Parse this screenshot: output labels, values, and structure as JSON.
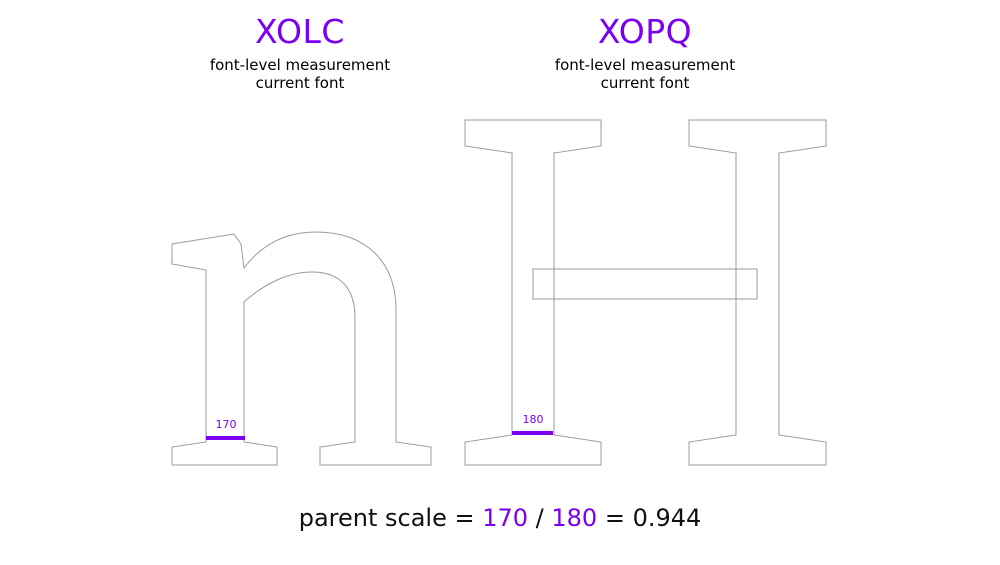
{
  "left": {
    "title": "XOLC",
    "subtitle_line1": "font-level measurement",
    "subtitle_line2": "current font",
    "glyph": "n",
    "measurement": "170"
  },
  "right": {
    "title": "XOPQ",
    "subtitle_line1": "font-level measurement",
    "subtitle_line2": "current font",
    "glyph": "H",
    "measurement": "180"
  },
  "formula": {
    "prefix": "parent scale = ",
    "numerator": "170",
    "divider": " / ",
    "denominator": "180",
    "equals": " = ",
    "result": "0.944"
  },
  "colors": {
    "accent": "#7B00F0",
    "outline": "#9a9a9a",
    "text": "#000000"
  }
}
